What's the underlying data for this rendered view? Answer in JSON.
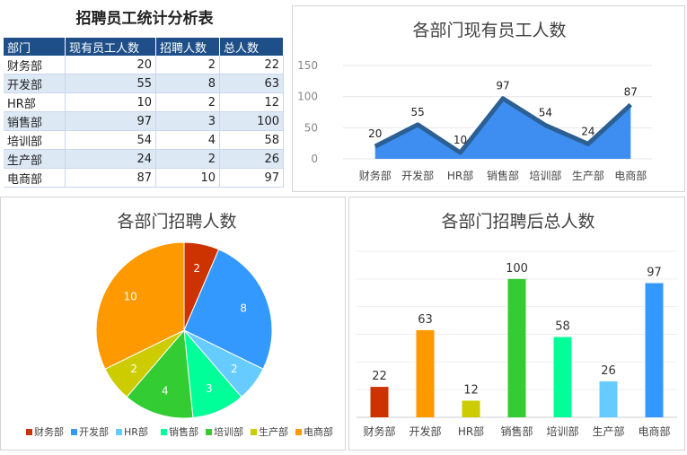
{
  "table": {
    "title": "招聘员工统计分析表",
    "headers": [
      "部门",
      "现有员工人数",
      "招聘人数",
      "总人数"
    ],
    "rows": [
      [
        "财务部",
        "20",
        "2",
        "22"
      ],
      [
        "开发部",
        "55",
        "8",
        "63"
      ],
      [
        "HR部",
        "10",
        "2",
        "12"
      ],
      [
        "销售部",
        "97",
        "3",
        "100"
      ],
      [
        "培训部",
        "54",
        "4",
        "58"
      ],
      [
        "生产部",
        "24",
        "2",
        "26"
      ],
      [
        "电商部",
        "87",
        "10",
        "97"
      ]
    ]
  },
  "colors": {
    "area_fill": "#3d8ef0",
    "area_line": "#2c5f93",
    "table_header": "#1f4f88",
    "dept": [
      "#cc3300",
      "#3399ff",
      "#66ccff",
      "#00ff99",
      "#33cc33",
      "#cccc00",
      "#ff9900"
    ],
    "bar": [
      "#cc3300",
      "#ff9900",
      "#cccc00",
      "#33cc33",
      "#00ff99",
      "#66ccff",
      "#3399ff"
    ]
  },
  "chart_data": [
    {
      "type": "area",
      "title": "各部门现有员工人数",
      "categories": [
        "财务部",
        "开发部",
        "HR部",
        "销售部",
        "培训部",
        "生产部",
        "电商部"
      ],
      "values": [
        20,
        55,
        10,
        97,
        54,
        24,
        87
      ],
      "ylim": [
        0,
        150
      ],
      "yticks": [
        0,
        50,
        100,
        150
      ],
      "grid": true
    },
    {
      "type": "pie",
      "title": "各部门招聘人数",
      "categories": [
        "财务部",
        "开发部",
        "HR部",
        "销售部",
        "培训部",
        "生产部",
        "电商部"
      ],
      "values": [
        2,
        8,
        2,
        3,
        4,
        2,
        10
      ],
      "legend": "bottom"
    },
    {
      "type": "bar",
      "title": "各部门招聘后总人数",
      "categories": [
        "财务部",
        "开发部",
        "HR部",
        "销售部",
        "培训部",
        "生产部",
        "电商部"
      ],
      "values": [
        22,
        63,
        12,
        100,
        58,
        26,
        97
      ],
      "ylim": [
        0,
        120
      ],
      "grid": true
    }
  ]
}
